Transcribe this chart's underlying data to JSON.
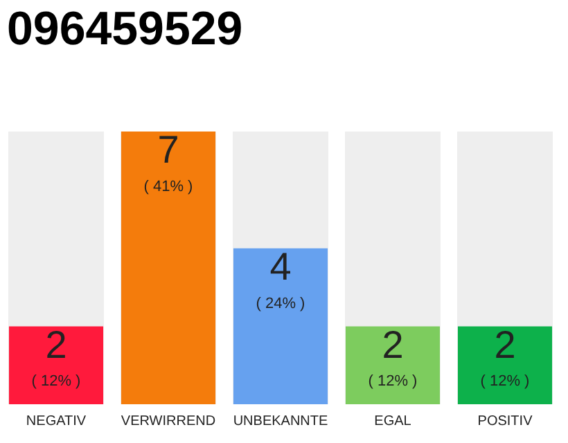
{
  "chart_data": {
    "type": "bar",
    "title": "096459529",
    "categories": [
      "NEGATIV",
      "VERWIRREND",
      "UNBEKANNTE",
      "EGAL",
      "POSITIV"
    ],
    "values": [
      2,
      7,
      4,
      2,
      2
    ],
    "colors": [
      "#ff1a3c",
      "#f47c0c",
      "#66a1ef",
      "#7dcc5e",
      "#0db14b"
    ],
    "ylim": [
      0,
      7
    ],
    "tick_labels": "x",
    "grid": false,
    "legend": false,
    "data_labels": true,
    "annotations": [
      "( 12% )",
      "( 41% )",
      "( 24% )",
      "( 12% )",
      "( 12% )"
    ]
  }
}
